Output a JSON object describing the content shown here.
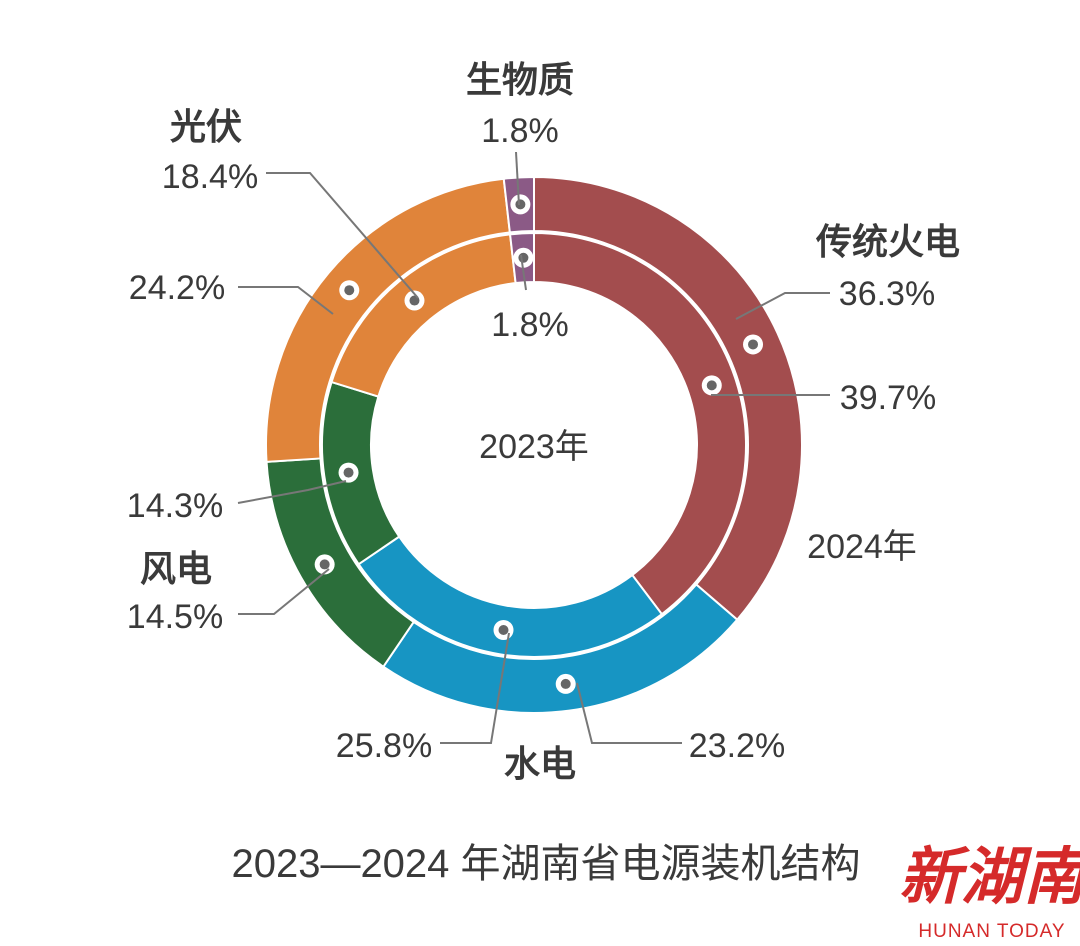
{
  "chart_data": {
    "type": "donut",
    "title": "2023—2024 年湖南省电源装机结构",
    "center_label": "2023年",
    "outer_ring_label": "2024年",
    "categories": [
      "传统火电",
      "水电",
      "风电",
      "光伏",
      "生物质"
    ],
    "colors": {
      "传统火电": "#a34d4e",
      "水电": "#1795c3",
      "风电": "#2b6e3a",
      "光伏": "#e0843a",
      "生物质": "#8b5a86"
    },
    "series": [
      {
        "name": "2023年",
        "ring": "inner",
        "values": [
          39.7,
          25.8,
          14.3,
          18.4,
          1.8
        ],
        "labels": [
          "39.7%",
          "25.8%",
          "14.3%",
          "18.4%",
          "1.8%"
        ]
      },
      {
        "name": "2024年",
        "ring": "outer",
        "values": [
          36.3,
          23.2,
          14.5,
          24.2,
          1.8
        ],
        "labels": [
          "36.3%",
          "23.2%",
          "14.5%",
          "24.2%",
          "1.8%"
        ]
      }
    ]
  },
  "logo": {
    "text": "新湖南",
    "subtext": "HUNAN TODAY"
  }
}
